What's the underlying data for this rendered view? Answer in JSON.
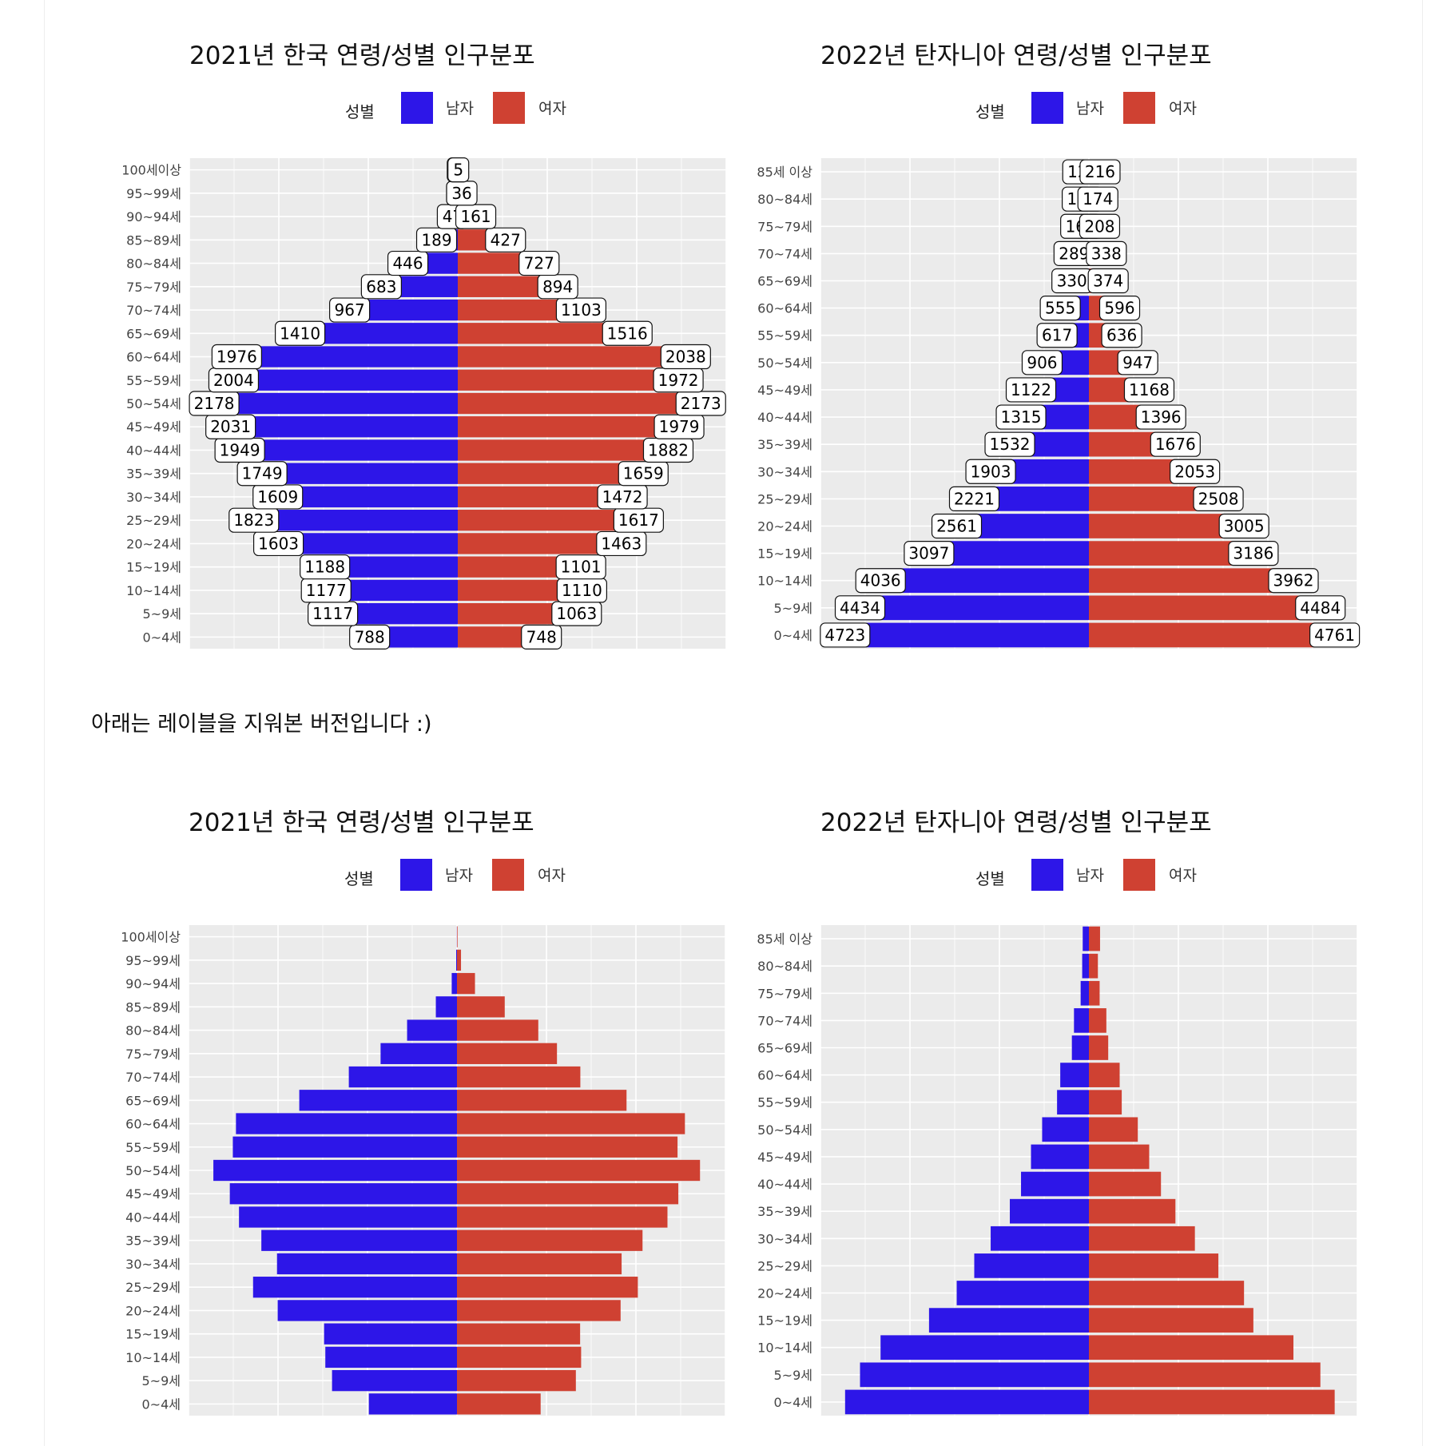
{
  "note_text": "아래는 레이블을 지워본 버전입니다 :)",
  "colors": {
    "male": "#2d16e8",
    "female": "#cf4132",
    "panel_bg": "#ebebeb",
    "grid": "#ffffff"
  },
  "legend": {
    "title": "성별",
    "male_label": "남자",
    "female_label": "여자"
  },
  "chart_data": [
    {
      "id": "korea-labeled",
      "type": "bar",
      "orientation": "horizontal-pyramid",
      "title": "2021년 한국 연령/성별 인구분포",
      "show_labels": true,
      "categories": [
        "0~4세",
        "5~9세",
        "10~14세",
        "15~19세",
        "20~24세",
        "25~29세",
        "30~34세",
        "35~39세",
        "40~44세",
        "45~49세",
        "50~54세",
        "55~59세",
        "60~64세",
        "65~69세",
        "70~74세",
        "75~79세",
        "80~84세",
        "85~89세",
        "90~94세",
        "95~99세",
        "100세이상"
      ],
      "series": [
        {
          "name": "남자",
          "values": [
            788,
            1117,
            1177,
            1188,
            1603,
            1823,
            1609,
            1749,
            1949,
            2031,
            2178,
            2004,
            1976,
            1410,
            967,
            683,
            446,
            189,
            47,
            7,
            1
          ]
        },
        {
          "name": "여자",
          "values": [
            748,
            1063,
            1110,
            1101,
            1463,
            1617,
            1472,
            1659,
            1882,
            1979,
            2173,
            1972,
            2038,
            1516,
            1103,
            894,
            727,
            427,
            161,
            36,
            5
          ]
        }
      ],
      "xlim": [
        -2400,
        2400
      ],
      "grid": true,
      "legend_position": "top"
    },
    {
      "id": "tanzania-labeled",
      "type": "bar",
      "orientation": "horizontal-pyramid",
      "title": "2022년 탄자니아 연령/성별 인구분포",
      "show_labels": true,
      "categories": [
        "0~4세",
        "5~9세",
        "10~14세",
        "15~19세",
        "20~24세",
        "25~29세",
        "30~34세",
        "35~39세",
        "40~44세",
        "45~49세",
        "50~54세",
        "55~59세",
        "60~64세",
        "65~69세",
        "70~74세",
        "75~79세",
        "80~84세",
        "85세 이상"
      ],
      "series": [
        {
          "name": "남자",
          "values": [
            4723,
            4434,
            4036,
            3097,
            2561,
            2221,
            1903,
            1532,
            1315,
            1122,
            906,
            617,
            555,
            330,
            289,
            160,
            130,
            120
          ]
        },
        {
          "name": "여자",
          "values": [
            4761,
            4484,
            3962,
            3186,
            3005,
            2508,
            2053,
            1676,
            1396,
            1168,
            947,
            636,
            596,
            374,
            338,
            208,
            174,
            216
          ]
        }
      ],
      "xlim": [
        -5200,
        5200
      ],
      "grid": true,
      "legend_position": "top"
    },
    {
      "id": "korea-unlabeled",
      "type": "bar",
      "orientation": "horizontal-pyramid",
      "title": "2021년 한국 연령/성별 인구분포",
      "show_labels": false,
      "categories": [
        "0~4세",
        "5~9세",
        "10~14세",
        "15~19세",
        "20~24세",
        "25~29세",
        "30~34세",
        "35~39세",
        "40~44세",
        "45~49세",
        "50~54세",
        "55~59세",
        "60~64세",
        "65~69세",
        "70~74세",
        "75~79세",
        "80~84세",
        "85~89세",
        "90~94세",
        "95~99세",
        "100세이상"
      ],
      "series": [
        {
          "name": "남자",
          "values": [
            788,
            1117,
            1177,
            1188,
            1603,
            1823,
            1609,
            1749,
            1949,
            2031,
            2178,
            2004,
            1976,
            1410,
            967,
            683,
            446,
            189,
            47,
            7,
            1
          ]
        },
        {
          "name": "여자",
          "values": [
            748,
            1063,
            1110,
            1101,
            1463,
            1617,
            1472,
            1659,
            1882,
            1979,
            2173,
            1972,
            2038,
            1516,
            1103,
            894,
            727,
            427,
            161,
            36,
            5
          ]
        }
      ],
      "xlim": [
        -2400,
        2400
      ],
      "grid": true,
      "legend_position": "top"
    },
    {
      "id": "tanzania-unlabeled",
      "type": "bar",
      "orientation": "horizontal-pyramid",
      "title": "2022년 탄자니아 연령/성별 인구분포",
      "show_labels": false,
      "categories": [
        "0~4세",
        "5~9세",
        "10~14세",
        "15~19세",
        "20~24세",
        "25~29세",
        "30~34세",
        "35~39세",
        "40~44세",
        "45~49세",
        "50~54세",
        "55~59세",
        "60~64세",
        "65~69세",
        "70~74세",
        "75~79세",
        "80~84세",
        "85세 이상"
      ],
      "series": [
        {
          "name": "남자",
          "values": [
            4723,
            4434,
            4036,
            3097,
            2561,
            2221,
            1903,
            1532,
            1315,
            1122,
            906,
            617,
            555,
            330,
            289,
            160,
            130,
            120
          ]
        },
        {
          "name": "여자",
          "values": [
            4761,
            4484,
            3962,
            3186,
            3005,
            2508,
            2053,
            1676,
            1396,
            1168,
            947,
            636,
            596,
            374,
            338,
            208,
            174,
            216
          ]
        }
      ],
      "xlim": [
        -5200,
        5200
      ],
      "grid": true,
      "legend_position": "top"
    }
  ]
}
